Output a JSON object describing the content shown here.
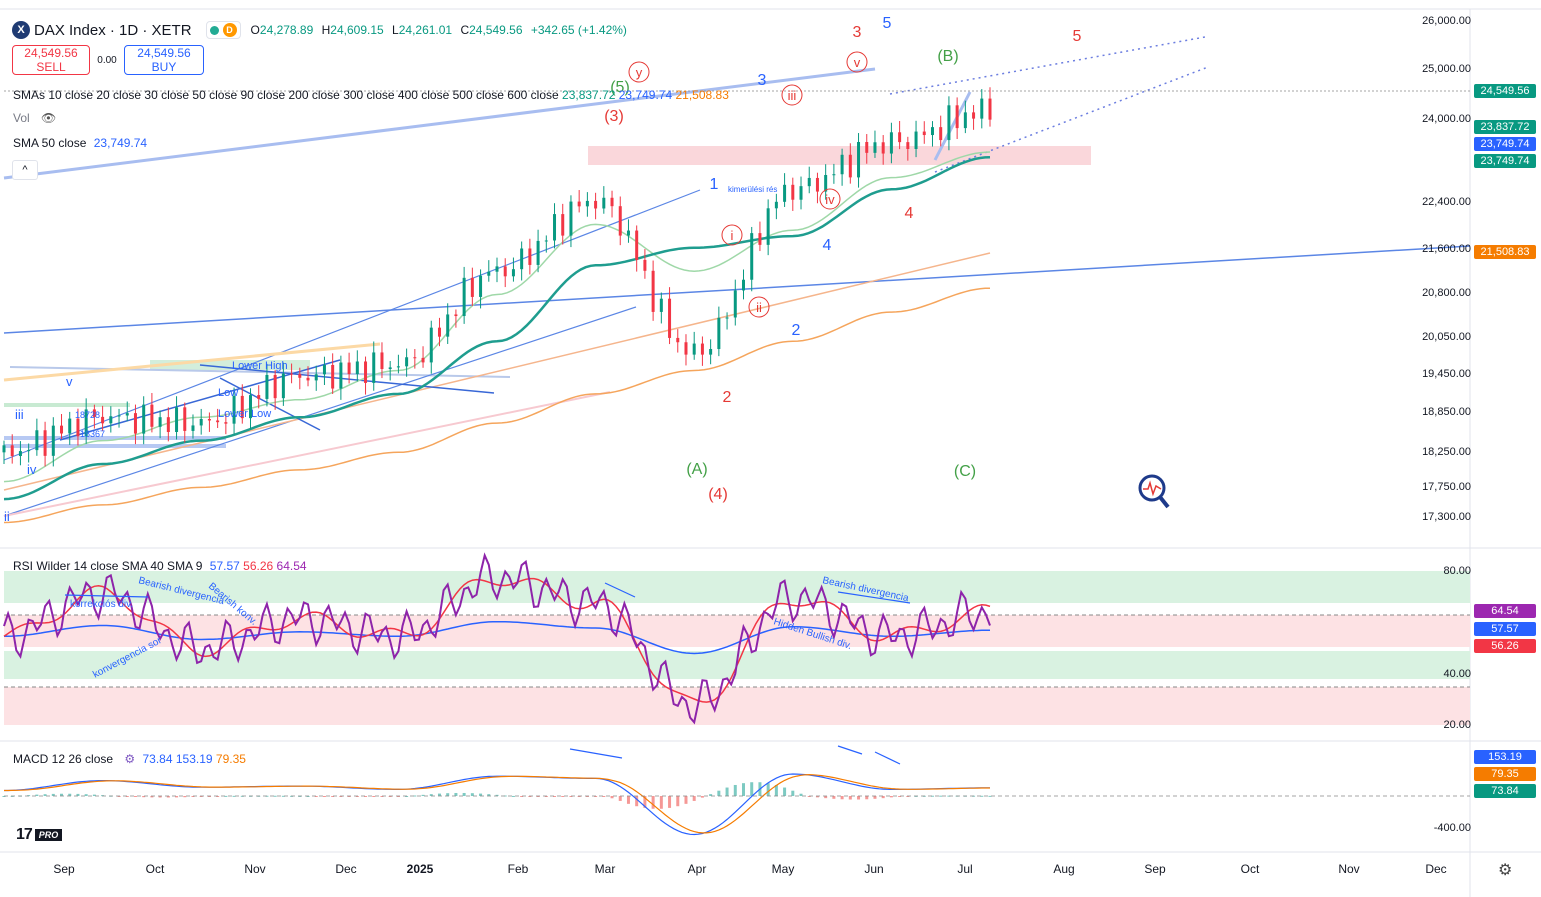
{
  "header": {
    "symbol_icon": "X",
    "title": "DAX Index · 1D · XETR",
    "status_chip": "D",
    "ohlc": {
      "o_key": "O",
      "o": "24,278.89",
      "h_key": "H",
      "h": "24,609.15",
      "l_key": "L",
      "l": "24,261.01",
      "c_key": "C",
      "c": "24,549.56",
      "change": "+342.65 (+1.42%)"
    }
  },
  "trade": {
    "sell_price": "24,549.56",
    "sell_label": "SELL",
    "spread": "0.00",
    "buy_price": "24,549.56",
    "buy_label": "BUY"
  },
  "legends": {
    "smas_name": "SMAs 10 close 20 close 30 close 50 close 90 close 200 close 300 close 400 close 500 close 600 close",
    "smas_v1": "23,837.72",
    "smas_v2": "23,749.74",
    "smas_v3": "21,508.83",
    "vol": "Vol",
    "sma50_name": "SMA 50 close",
    "sma50_value": "23,749.74",
    "rsi_name": "RSI Wilder 14 close SMA 40 SMA 9",
    "rsi_v1": "57.57",
    "rsi_v2": "56.26",
    "rsi_v3": "64.54",
    "macd_name": "MACD 12 26 close",
    "macd_v1": "73.84",
    "macd_v2": "153.19",
    "macd_v3": "79.35"
  },
  "price_axis": [
    "26,000.00",
    "25,000.00",
    "24,000.00",
    "22,400.00",
    "21,600.00",
    "20,800.00",
    "20,050.00",
    "19,450.00",
    "18,850.00",
    "18,250.00",
    "17,750.00",
    "17,300.00"
  ],
  "price_badges": [
    {
      "text": "24,549.56",
      "color": "#089981"
    },
    {
      "text": "23,837.72",
      "color": "#089981"
    },
    {
      "text": "23,749.74",
      "color": "#2962ff"
    },
    {
      "text": "23,749.74",
      "color": "#089981"
    },
    {
      "text": "21,508.83",
      "color": "#f57c00"
    }
  ],
  "rsi_axis": [
    "80.00",
    "40.00",
    "20.00"
  ],
  "rsi_badges": [
    {
      "text": "64.54",
      "color": "#9c27b0"
    },
    {
      "text": "57.57",
      "color": "#2962ff"
    },
    {
      "text": "56.26",
      "color": "#f23645"
    }
  ],
  "macd_axis": [
    "-400.00"
  ],
  "macd_badges": [
    {
      "text": "153.19",
      "color": "#2962ff"
    },
    {
      "text": "79.35",
      "color": "#f57c00"
    },
    {
      "text": "73.84",
      "color": "#089981"
    }
  ],
  "time_axis": [
    "Sep",
    "Oct",
    "Nov",
    "Dec",
    "2025",
    "Feb",
    "Mar",
    "Apr",
    "May",
    "Jun",
    "Jul",
    "Aug",
    "Sep",
    "Oct",
    "Nov",
    "Dec"
  ],
  "annotations": {
    "green_waves": [
      "(5)",
      "(A)",
      "(C)",
      "(B)"
    ],
    "red_waves": [
      "(3)",
      "(4)",
      "2",
      "3",
      "4",
      "5"
    ],
    "blue_waves": [
      "1",
      "2",
      "3",
      "4",
      "5",
      "3"
    ],
    "circled": [
      "y",
      "v",
      "iii",
      "iv",
      "i",
      "ii"
    ],
    "left_labels": [
      "v",
      "iii",
      "iv",
      "ii"
    ],
    "chart_texts": [
      "Lower High",
      "Low",
      "Lower Low",
      "18728",
      "18367",
      "kimerülési rés"
    ],
    "rsi_texts": [
      "korrekciós div.",
      "Bearish divergencia",
      "Bearish konv.",
      "konvergencia sor",
      "Bearish divergencia",
      "Hidden Bullish div."
    ]
  },
  "chart_data": {
    "type": "line",
    "title": "DAX Index · 1D · XETR",
    "x": [
      "Sep",
      "Oct",
      "Nov",
      "Dec",
      "2025",
      "Feb",
      "Mar",
      "Apr",
      "May",
      "Jun",
      "Jul"
    ],
    "series": [
      {
        "values": [
          18700,
          19300,
          19200,
          20000,
          20200,
          21800,
          23000,
          20400,
          23200,
          24000,
          24550
        ]
      },
      {
        "values": [
          18200,
          18900,
          19300,
          19600,
          20100,
          21400,
          22600,
          21800,
          22500,
          23400,
          23838
        ]
      },
      {
        "values": [
          17900,
          18500,
          18900,
          19300,
          19700,
          20600,
          21900,
          22200,
          22400,
          23200,
          23750
        ]
      },
      {
        "values": [
          17500,
          17800,
          18100,
          18400,
          18700,
          19200,
          19700,
          20100,
          20600,
          21100,
          21509
        ]
      }
    ],
    "ylim": [
      17200,
      26200
    ],
    "rsi": {
      "ylim": [
        15,
        85
      ],
      "values": [
        55,
        72,
        50,
        62,
        55,
        78,
        68,
        28,
        70,
        55,
        64.54
      ]
    },
    "macd": {
      "values": [
        50,
        140,
        80,
        90,
        60,
        180,
        160,
        -350,
        200,
        60,
        73.84
      ]
    }
  }
}
